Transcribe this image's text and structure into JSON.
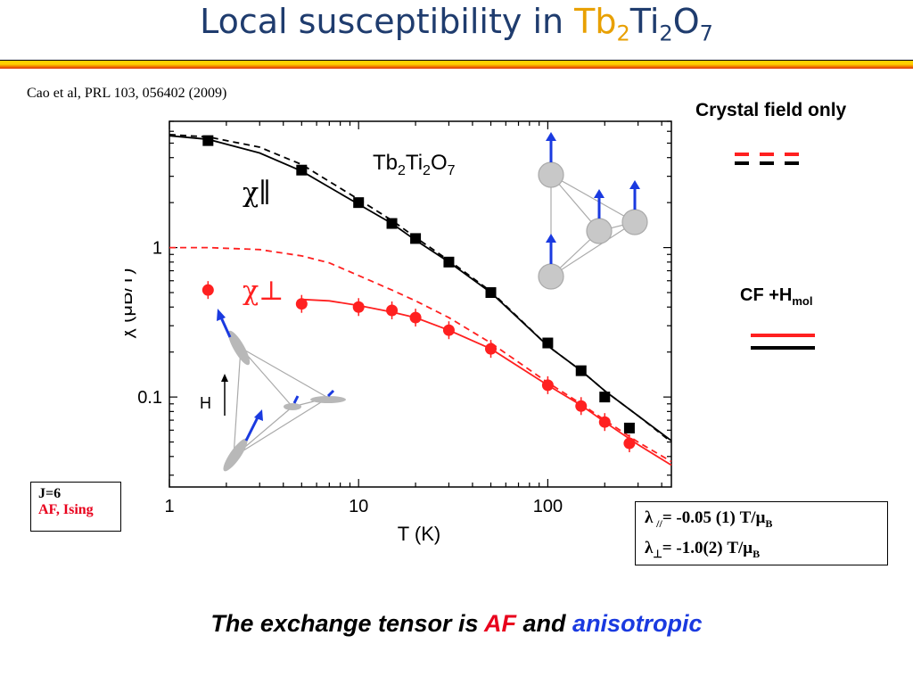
{
  "slide": {
    "title_prefix": "Local susceptibility in ",
    "title_formula": {
      "tb": "Tb",
      "s1": "2",
      "ti": "Ti",
      "s2": "2",
      "o": "O",
      "s3": "7"
    },
    "citation": "Cao et al, PRL 103, 056402 (2009)",
    "legend_crystal_field": "Crystal field only",
    "legend_cf_hmol": "CF +H",
    "legend_cf_hmol_sub": "mol",
    "jbox_line1": "J=6",
    "jbox_line2": "AF, Ising",
    "lambda_par_sym": "λ",
    "lambda_par_sub": "//",
    "lambda_par_val": "= -0.05 (1) T/μ",
    "lambda_par_unit_sub": "B",
    "lambda_perp_sym": "λ",
    "lambda_perp_val": "= -1.0(2) T/μ",
    "lambda_perp_unit_sub": "B",
    "conclusion_a": "The exchange tensor is ",
    "conclusion_af": "AF",
    "conclusion_b": " and ",
    "conclusion_aniso": "anisotropic",
    "colors": {
      "red": "#ff2020",
      "black": "#000000",
      "title": "#1f3c6e",
      "accent": "#e8a000",
      "blue": "#1a3ae0"
    }
  },
  "chart_data": {
    "type": "scatter",
    "xlabel": "T (K)",
    "ylabel": "χ (μB/T)",
    "xscale": "log",
    "yscale": "log",
    "xlim": [
      1,
      450
    ],
    "ylim": [
      0.025,
      7
    ],
    "x_ticks": [
      1,
      10,
      100
    ],
    "x_tick_labels": [
      "1",
      "10",
      "100"
    ],
    "y_ticks": [
      0.1,
      1
    ],
    "y_tick_labels": [
      "0.1",
      "1"
    ],
    "compound_label": {
      "base": "Tb",
      "s1": "2",
      "mid": "Ti",
      "s2": "2",
      "end": "O",
      "s3": "7"
    },
    "series": [
      {
        "name": "χ∥",
        "color": "#000000",
        "x": [
          1.6,
          5,
          10,
          15,
          20,
          30,
          50,
          100,
          150,
          200,
          270
        ],
        "y": [
          5.2,
          3.3,
          2.0,
          1.45,
          1.15,
          0.8,
          0.5,
          0.23,
          0.15,
          0.1,
          0.062
        ]
      },
      {
        "name": "χ⊥",
        "color": "#ff2020",
        "x": [
          1.6,
          5,
          10,
          15,
          20,
          30,
          50,
          100,
          150,
          200,
          270
        ],
        "y": [
          0.52,
          0.42,
          0.4,
          0.38,
          0.34,
          0.28,
          0.21,
          0.12,
          0.087,
          0.068,
          0.049
        ]
      }
    ],
    "curves": [
      {
        "color": "#000000",
        "dash": false,
        "x": [
          1,
          1.6,
          3,
          5,
          10,
          15,
          20,
          30,
          50,
          100,
          150,
          200,
          300,
          450
        ],
        "y": [
          5.6,
          5.3,
          4.3,
          3.25,
          1.95,
          1.45,
          1.12,
          0.8,
          0.5,
          0.22,
          0.15,
          0.11,
          0.075,
          0.051
        ]
      },
      {
        "color": "#000000",
        "dash": true,
        "x": [
          1,
          1.6,
          3,
          5,
          10,
          15,
          20,
          30,
          50,
          100,
          150,
          200,
          300,
          450
        ],
        "y": [
          5.7,
          5.5,
          4.7,
          3.6,
          2.1,
          1.52,
          1.17,
          0.82,
          0.51,
          0.22,
          0.15,
          0.11,
          0.075,
          0.05
        ]
      },
      {
        "color": "#ff2020",
        "dash": false,
        "x": [
          5,
          7,
          10,
          15,
          20,
          30,
          50,
          100,
          150,
          200,
          300,
          450
        ],
        "y": [
          0.45,
          0.44,
          0.41,
          0.37,
          0.34,
          0.28,
          0.21,
          0.12,
          0.088,
          0.068,
          0.048,
          0.035
        ]
      },
      {
        "color": "#ff2020",
        "dash": true,
        "x": [
          1,
          1.6,
          3,
          5,
          7,
          10,
          15,
          20,
          30,
          50,
          100,
          150,
          200,
          300,
          450
        ],
        "y": [
          1.0,
          1.0,
          0.97,
          0.88,
          0.79,
          0.65,
          0.52,
          0.44,
          0.34,
          0.23,
          0.125,
          0.09,
          0.07,
          0.05,
          0.037
        ]
      }
    ]
  }
}
